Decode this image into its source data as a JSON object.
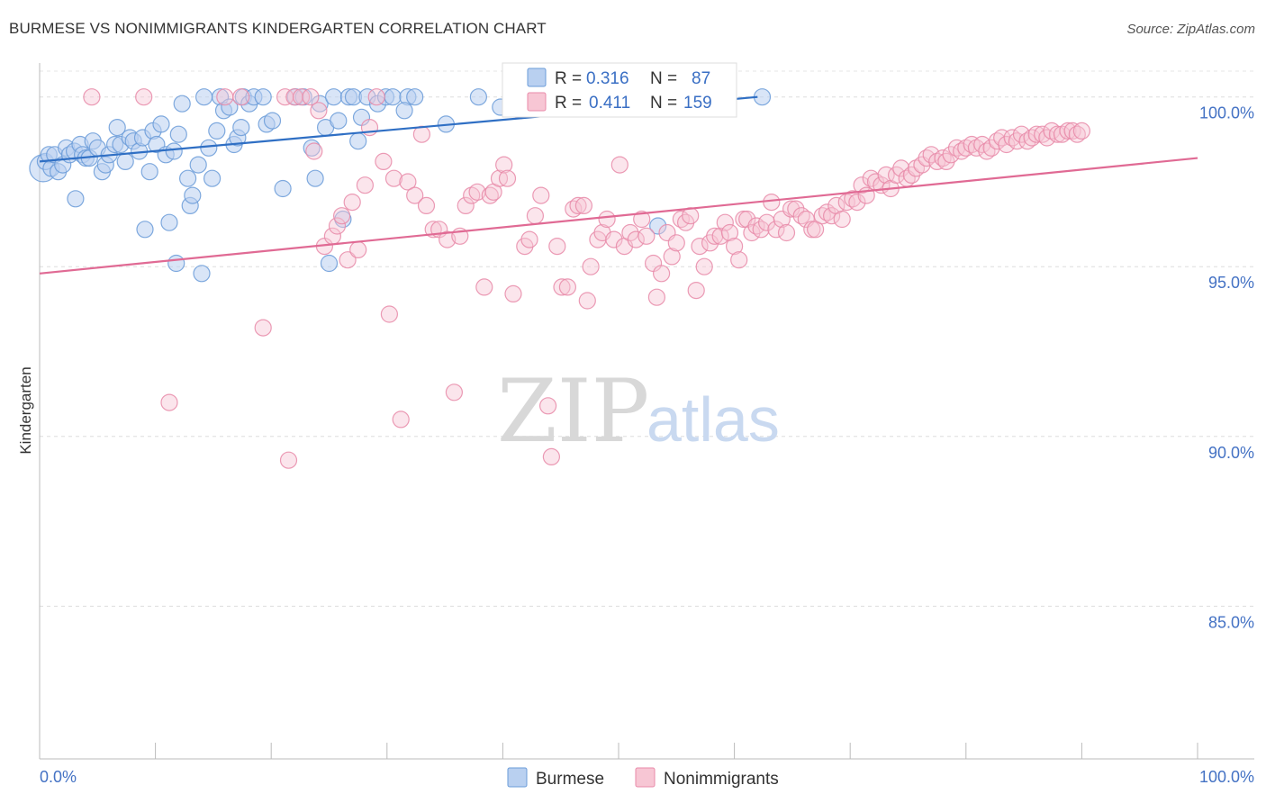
{
  "chart_data": {
    "type": "scatter",
    "title": "BURMESE VS NONIMMIGRANTS KINDERGARTEN CORRELATION CHART",
    "source": "Source: ZipAtlas.com",
    "xlabel": "",
    "ylabel": "Kindergarten",
    "xlim": [
      0,
      100
    ],
    "ylim": [
      80.5,
      101.0
    ],
    "x_tick_labels": [
      "0.0%",
      "100.0%"
    ],
    "y_ticks": [
      {
        "value": 100.0,
        "label": "100.0%"
      },
      {
        "value": 95.0,
        "label": "95.0%"
      },
      {
        "value": 90.0,
        "label": "90.0%"
      },
      {
        "value": 85.0,
        "label": "85.0%"
      }
    ],
    "watermark": {
      "zip": "ZIP",
      "atlas": "atlas"
    },
    "stats_legend": [
      {
        "r_label": "R =",
        "r_value": "0.316",
        "n_label": "N =",
        "n_value": "87"
      },
      {
        "r_label": "R =",
        "r_value": "0.411",
        "n_label": "N =",
        "n_value": "159"
      }
    ],
    "series": [
      {
        "name": "Burmese",
        "color": "#6a9bd8",
        "fill": "#b9d0f0",
        "line_color": "#2f6fc4",
        "trend": {
          "x0": 0,
          "y0": 98.1,
          "x1": 62,
          "y1": 100.0
        },
        "points": [
          [
            0.3,
            97.9
          ],
          [
            0.5,
            98.1
          ],
          [
            0.8,
            98.3
          ],
          [
            1.0,
            97.9
          ],
          [
            1.3,
            98.3
          ],
          [
            1.6,
            97.8
          ],
          [
            2.0,
            98.0
          ],
          [
            2.3,
            98.5
          ],
          [
            2.6,
            98.3
          ],
          [
            3.0,
            98.4
          ],
          [
            3.1,
            97.0
          ],
          [
            3.5,
            98.6
          ],
          [
            3.7,
            98.3
          ],
          [
            4.0,
            98.2
          ],
          [
            4.3,
            98.2
          ],
          [
            4.6,
            98.7
          ],
          [
            5.0,
            98.5
          ],
          [
            5.4,
            97.8
          ],
          [
            5.7,
            98.0
          ],
          [
            6.0,
            98.3
          ],
          [
            6.5,
            98.6
          ],
          [
            6.7,
            99.1
          ],
          [
            7.0,
            98.6
          ],
          [
            7.4,
            98.1
          ],
          [
            7.8,
            98.8
          ],
          [
            8.1,
            98.7
          ],
          [
            8.6,
            98.4
          ],
          [
            8.9,
            98.8
          ],
          [
            9.1,
            96.1
          ],
          [
            9.5,
            97.8
          ],
          [
            9.8,
            99.0
          ],
          [
            10.1,
            98.6
          ],
          [
            10.5,
            99.2
          ],
          [
            10.9,
            98.3
          ],
          [
            11.2,
            96.3
          ],
          [
            11.6,
            98.4
          ],
          [
            11.8,
            95.1
          ],
          [
            12.0,
            98.9
          ],
          [
            12.3,
            99.8
          ],
          [
            12.8,
            97.6
          ],
          [
            13.0,
            96.8
          ],
          [
            13.2,
            97.1
          ],
          [
            13.7,
            98.0
          ],
          [
            14.0,
            94.8
          ],
          [
            14.2,
            100.0
          ],
          [
            14.6,
            98.5
          ],
          [
            14.9,
            97.6
          ],
          [
            15.3,
            99.0
          ],
          [
            15.6,
            100.0
          ],
          [
            15.9,
            99.6
          ],
          [
            16.4,
            99.7
          ],
          [
            16.8,
            98.6
          ],
          [
            17.1,
            98.8
          ],
          [
            17.4,
            99.1
          ],
          [
            17.6,
            100.0
          ],
          [
            18.1,
            99.8
          ],
          [
            18.5,
            100.0
          ],
          [
            19.3,
            100.0
          ],
          [
            19.6,
            99.2
          ],
          [
            20.1,
            99.3
          ],
          [
            21.0,
            97.3
          ],
          [
            22.1,
            100.0
          ],
          [
            22.8,
            100.0
          ],
          [
            23.5,
            98.5
          ],
          [
            23.8,
            97.6
          ],
          [
            24.2,
            99.8
          ],
          [
            24.7,
            99.1
          ],
          [
            25.0,
            95.1
          ],
          [
            25.4,
            100.0
          ],
          [
            25.8,
            99.3
          ],
          [
            26.2,
            96.4
          ],
          [
            26.7,
            100.0
          ],
          [
            27.1,
            100.0
          ],
          [
            27.5,
            98.7
          ],
          [
            27.8,
            99.4
          ],
          [
            28.3,
            100.0
          ],
          [
            29.2,
            99.8
          ],
          [
            29.9,
            100.0
          ],
          [
            30.5,
            100.0
          ],
          [
            31.8,
            100.0
          ],
          [
            31.5,
            99.6
          ],
          [
            32.4,
            100.0
          ],
          [
            35.1,
            99.2
          ],
          [
            37.9,
            100.0
          ],
          [
            39.8,
            99.7
          ],
          [
            53.4,
            96.2
          ],
          [
            62.4,
            100.0
          ]
        ]
      },
      {
        "name": "Nonimmigrants",
        "color": "#e88aa8",
        "fill": "#f7c6d4",
        "line_color": "#e06a94",
        "trend": {
          "x0": 0,
          "y0": 94.8,
          "x1": 100,
          "y1": 98.2
        },
        "points": [
          [
            4.5,
            100.0
          ],
          [
            9.0,
            100.0
          ],
          [
            11.2,
            91.0
          ],
          [
            16.0,
            100.0
          ],
          [
            17.4,
            100.0
          ],
          [
            19.3,
            93.2
          ],
          [
            21.2,
            100.0
          ],
          [
            21.5,
            89.3
          ],
          [
            22.0,
            100.0
          ],
          [
            22.6,
            100.0
          ],
          [
            23.4,
            100.0
          ],
          [
            23.7,
            98.4
          ],
          [
            24.1,
            99.6
          ],
          [
            24.6,
            95.6
          ],
          [
            25.3,
            95.9
          ],
          [
            25.7,
            96.2
          ],
          [
            26.1,
            96.5
          ],
          [
            26.6,
            95.2
          ],
          [
            27.0,
            96.9
          ],
          [
            27.5,
            95.5
          ],
          [
            28.1,
            97.4
          ],
          [
            28.5,
            99.1
          ],
          [
            29.1,
            100.0
          ],
          [
            29.7,
            98.1
          ],
          [
            30.2,
            93.6
          ],
          [
            30.6,
            97.6
          ],
          [
            31.2,
            90.5
          ],
          [
            31.8,
            97.5
          ],
          [
            32.4,
            97.1
          ],
          [
            33.0,
            98.9
          ],
          [
            33.4,
            96.8
          ],
          [
            34.0,
            96.1
          ],
          [
            34.5,
            96.1
          ],
          [
            35.2,
            95.8
          ],
          [
            35.8,
            91.3
          ],
          [
            36.3,
            95.9
          ],
          [
            36.8,
            96.8
          ],
          [
            37.3,
            97.1
          ],
          [
            37.8,
            97.2
          ],
          [
            38.4,
            94.4
          ],
          [
            38.9,
            97.1
          ],
          [
            39.2,
            97.2
          ],
          [
            39.7,
            97.6
          ],
          [
            40.1,
            98.0
          ],
          [
            40.4,
            97.6
          ],
          [
            40.9,
            94.2
          ],
          [
            41.5,
            99.6
          ],
          [
            41.9,
            95.6
          ],
          [
            42.3,
            95.8
          ],
          [
            42.8,
            96.5
          ],
          [
            43.3,
            97.1
          ],
          [
            43.9,
            90.9
          ],
          [
            44.2,
            89.4
          ],
          [
            44.7,
            95.6
          ],
          [
            45.1,
            94.4
          ],
          [
            45.6,
            94.4
          ],
          [
            46.1,
            96.7
          ],
          [
            46.5,
            96.8
          ],
          [
            47.0,
            96.8
          ],
          [
            47.3,
            94.0
          ],
          [
            47.6,
            95.0
          ],
          [
            48.2,
            95.8
          ],
          [
            48.6,
            96.0
          ],
          [
            49.0,
            96.4
          ],
          [
            49.6,
            95.8
          ],
          [
            50.1,
            98.0
          ],
          [
            50.5,
            95.6
          ],
          [
            51.0,
            96.0
          ],
          [
            51.5,
            95.8
          ],
          [
            52.0,
            96.4
          ],
          [
            52.4,
            95.9
          ],
          [
            53.0,
            95.1
          ],
          [
            53.3,
            94.1
          ],
          [
            53.7,
            94.8
          ],
          [
            54.2,
            96.0
          ],
          [
            54.6,
            95.3
          ],
          [
            55.0,
            95.7
          ],
          [
            55.4,
            96.4
          ],
          [
            55.8,
            96.3
          ],
          [
            56.2,
            96.5
          ],
          [
            56.7,
            94.3
          ],
          [
            57.0,
            95.6
          ],
          [
            57.4,
            95.0
          ],
          [
            57.9,
            95.7
          ],
          [
            58.3,
            95.9
          ],
          [
            58.8,
            95.9
          ],
          [
            59.2,
            96.3
          ],
          [
            59.6,
            96.0
          ],
          [
            60.0,
            95.6
          ],
          [
            60.4,
            95.2
          ],
          [
            60.8,
            96.4
          ],
          [
            61.1,
            96.4
          ],
          [
            61.5,
            96.0
          ],
          [
            61.9,
            96.2
          ],
          [
            62.3,
            96.1
          ],
          [
            62.8,
            96.3
          ],
          [
            63.2,
            96.9
          ],
          [
            63.6,
            96.1
          ],
          [
            64.1,
            96.4
          ],
          [
            64.5,
            96.0
          ],
          [
            64.9,
            96.7
          ],
          [
            65.3,
            96.7
          ],
          [
            65.8,
            96.5
          ],
          [
            66.2,
            96.4
          ],
          [
            66.7,
            96.1
          ],
          [
            67.0,
            96.1
          ],
          [
            67.6,
            96.5
          ],
          [
            68.0,
            96.6
          ],
          [
            68.4,
            96.5
          ],
          [
            68.8,
            96.8
          ],
          [
            69.3,
            96.4
          ],
          [
            69.7,
            96.9
          ],
          [
            70.2,
            97.0
          ],
          [
            70.6,
            96.9
          ],
          [
            71.0,
            97.4
          ],
          [
            71.4,
            97.1
          ],
          [
            71.8,
            97.6
          ],
          [
            72.2,
            97.5
          ],
          [
            72.7,
            97.4
          ],
          [
            73.1,
            97.7
          ],
          [
            73.5,
            97.3
          ],
          [
            74.0,
            97.7
          ],
          [
            74.4,
            97.9
          ],
          [
            74.9,
            97.6
          ],
          [
            75.3,
            97.7
          ],
          [
            75.7,
            97.9
          ],
          [
            76.2,
            98.0
          ],
          [
            76.6,
            98.2
          ],
          [
            77.0,
            98.3
          ],
          [
            77.5,
            98.1
          ],
          [
            78.0,
            98.2
          ],
          [
            78.3,
            98.1
          ],
          [
            78.7,
            98.3
          ],
          [
            79.2,
            98.5
          ],
          [
            79.6,
            98.4
          ],
          [
            80.0,
            98.5
          ],
          [
            80.5,
            98.6
          ],
          [
            80.9,
            98.5
          ],
          [
            81.4,
            98.6
          ],
          [
            81.8,
            98.4
          ],
          [
            82.2,
            98.5
          ],
          [
            82.7,
            98.7
          ],
          [
            83.1,
            98.8
          ],
          [
            83.5,
            98.6
          ],
          [
            84.0,
            98.8
          ],
          [
            84.4,
            98.7
          ],
          [
            84.8,
            98.9
          ],
          [
            85.3,
            98.7
          ],
          [
            85.7,
            98.8
          ],
          [
            86.1,
            98.9
          ],
          [
            86.6,
            98.9
          ],
          [
            87.0,
            98.8
          ],
          [
            87.4,
            99.0
          ],
          [
            87.9,
            98.9
          ],
          [
            88.3,
            98.9
          ],
          [
            88.8,
            99.0
          ],
          [
            89.2,
            99.0
          ],
          [
            89.6,
            98.9
          ],
          [
            90.0,
            99.0
          ]
        ]
      }
    ]
  }
}
